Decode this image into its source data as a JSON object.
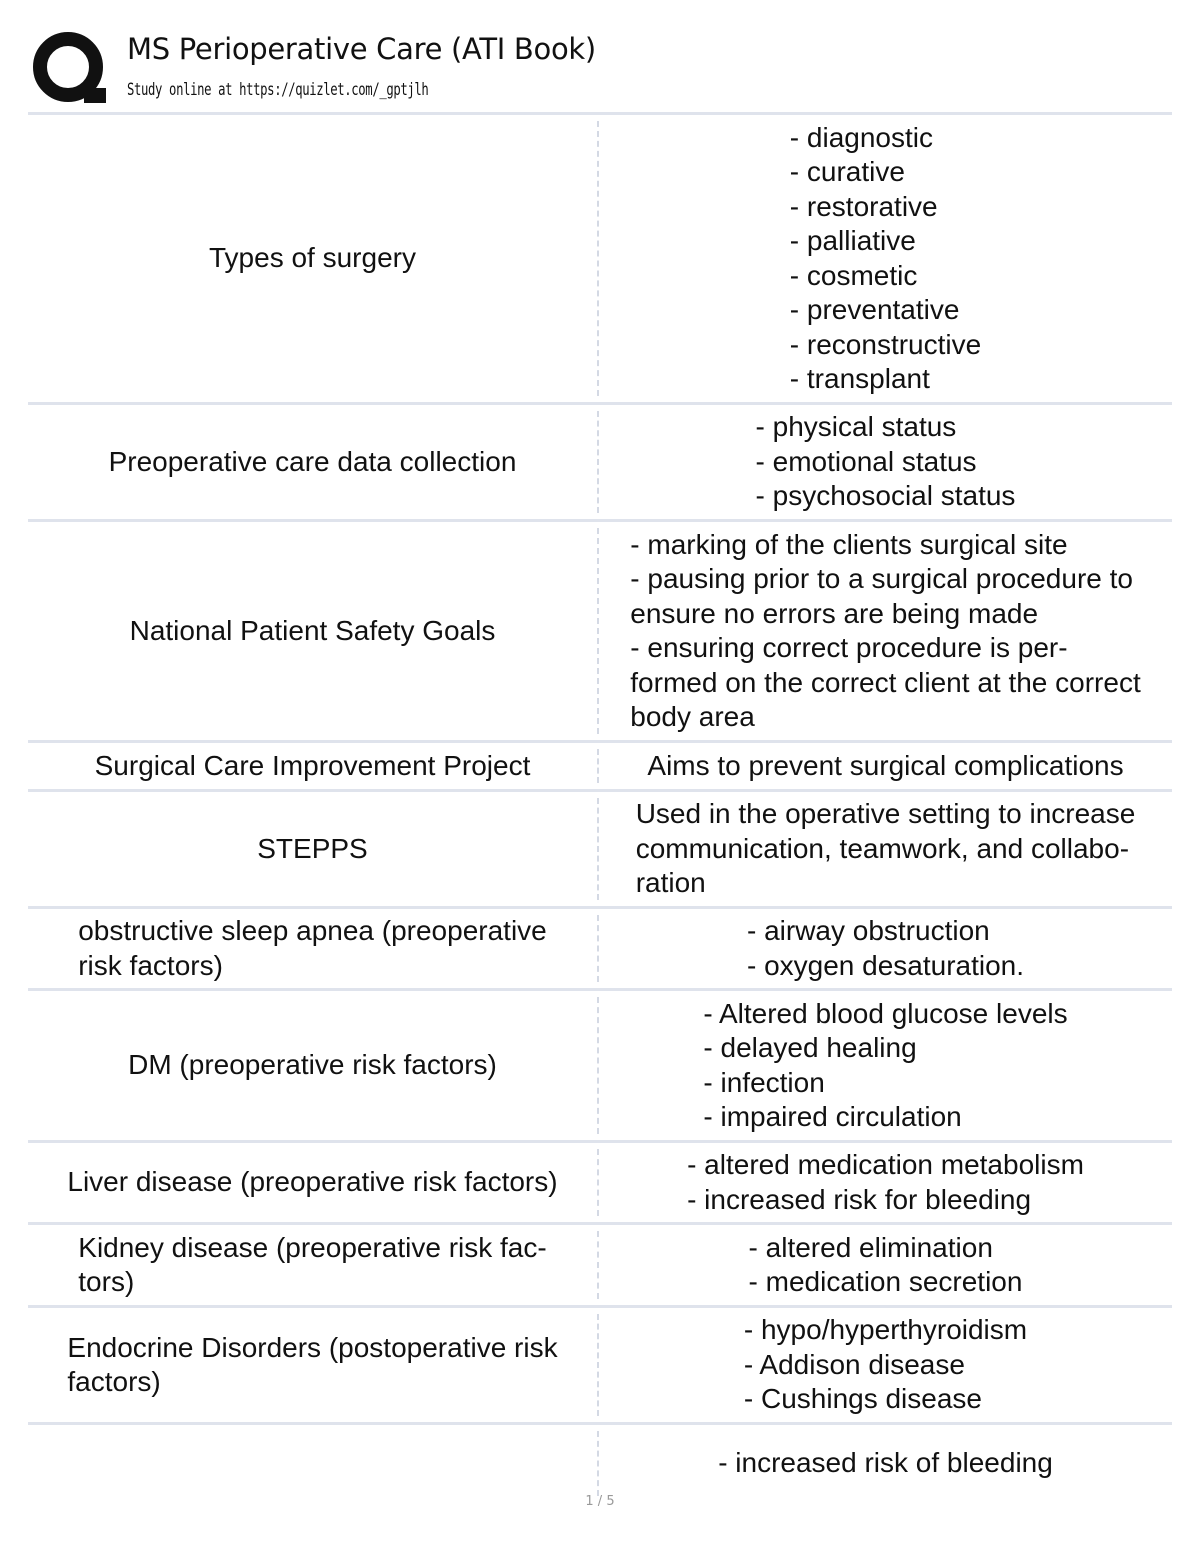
{
  "header": {
    "title": "MS Perioperative Care (ATI Book)",
    "subtitle": "Study online at https://quizlet.com/_gptjlh",
    "logo_icon": "quizlet-q-logo"
  },
  "cards": [
    {
      "term": "Types of surgery",
      "definition": "- diagnostic\n- curative\n- restorative\n- palliative\n- cosmetic\n- preventative\n- reconstructive\n- transplant"
    },
    {
      "term": "Preoperative care data collection",
      "definition": "- physical status\n- emotional status\n- psychosocial status"
    },
    {
      "term": "National Patient Safety Goals",
      "definition": "- marking of the clients surgical site\n- pausing prior to a surgical procedure to\nensure no errors are being made\n- ensuring correct procedure is per-\nformed on the correct client at the correct\nbody area"
    },
    {
      "term": "Surgical Care Improvement Project",
      "definition": "Aims to prevent surgical complications"
    },
    {
      "term": "STEPPS",
      "definition": "Used in the operative setting to increase\ncommunication, teamwork, and collabo-\nration"
    },
    {
      "term": "obstructive sleep apnea (preoperative\nrisk factors)",
      "definition": "- airway obstruction\n- oxygen desaturation."
    },
    {
      "term": "DM (preoperative risk factors)",
      "definition": "- Altered blood glucose levels\n- delayed healing\n- infection\n- impaired circulation"
    },
    {
      "term": "Liver disease (preoperative risk factors)",
      "definition": "- altered medication metabolism\n- increased risk for bleeding"
    },
    {
      "term": "Kidney disease (preoperative risk fac-\ntors)",
      "definition": "- altered elimination\n- medication secretion"
    },
    {
      "term": "Endocrine Disorders (postoperative risk\nfactors)",
      "definition": "- hypo/hyperthyroidism\n- Addison disease\n- Cushings disease"
    },
    {
      "term": "",
      "definition": "- increased risk of bleeding"
    }
  ],
  "footer": {
    "page": "1 / 5"
  }
}
